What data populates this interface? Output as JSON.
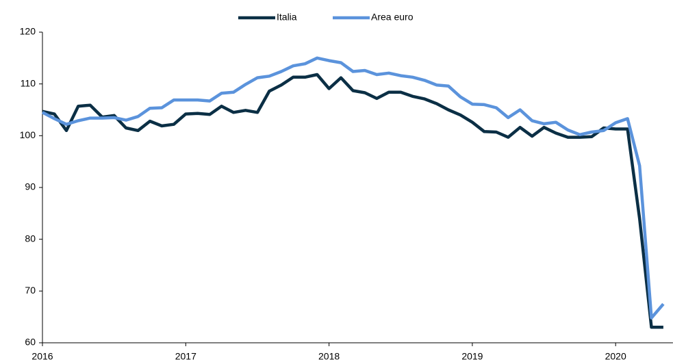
{
  "chart_data": {
    "type": "line",
    "x": [
      2016,
      2016.083,
      2016.167,
      2016.25,
      2016.333,
      2016.417,
      2016.5,
      2016.583,
      2016.667,
      2016.75,
      2016.833,
      2016.917,
      2017,
      2017.083,
      2017.167,
      2017.25,
      2017.333,
      2017.417,
      2017.5,
      2017.583,
      2017.667,
      2017.75,
      2017.833,
      2017.917,
      2018,
      2018.083,
      2018.167,
      2018.25,
      2018.333,
      2018.417,
      2018.5,
      2018.583,
      2018.667,
      2018.75,
      2018.833,
      2018.917,
      2019,
      2019.083,
      2019.167,
      2019.25,
      2019.333,
      2019.417,
      2019.5,
      2019.583,
      2019.667,
      2019.75,
      2019.833,
      2019.917,
      2020,
      2020.083,
      2020.167,
      2020.25,
      2020.333
    ],
    "series": [
      {
        "name": "Italia",
        "color": "#0b2f45",
        "values": [
          104.7,
          104.2,
          101.0,
          105.7,
          105.9,
          103.6,
          103.9,
          101.5,
          101.0,
          102.8,
          101.9,
          102.2,
          104.2,
          104.3,
          104.1,
          105.7,
          104.5,
          104.9,
          104.5,
          108.6,
          109.8,
          111.3,
          111.3,
          111.8,
          109.1,
          111.2,
          108.7,
          108.3,
          107.2,
          108.4,
          108.4,
          107.6,
          107.1,
          106.2,
          105.0,
          104.0,
          102.6,
          100.8,
          100.7,
          99.7,
          101.6,
          99.9,
          101.6,
          100.5,
          99.7,
          99.7,
          99.8,
          101.5,
          101.3,
          101.3,
          84.0,
          63.0,
          63.0
        ]
      },
      {
        "name": "Area euro",
        "color": "#5b93dc",
        "values": [
          104.5,
          103.3,
          102.2,
          102.9,
          103.4,
          103.4,
          103.5,
          103.0,
          103.7,
          105.3,
          105.4,
          106.9,
          106.9,
          106.9,
          106.7,
          108.2,
          108.4,
          109.9,
          111.2,
          111.5,
          112.4,
          113.5,
          113.9,
          115.0,
          114.5,
          114.1,
          112.4,
          112.6,
          111.8,
          112.1,
          111.6,
          111.3,
          110.7,
          109.8,
          109.6,
          107.5,
          106.1,
          106.0,
          105.4,
          103.5,
          105.0,
          102.9,
          102.3,
          102.6,
          101.1,
          100.2,
          100.7,
          101.0,
          102.5,
          103.3,
          94.2,
          64.8,
          67.5
        ]
      }
    ],
    "xlim": [
      2016,
      2020.4
    ],
    "xticks": [
      2016,
      2017,
      2018,
      2019,
      2020
    ],
    "ylim": [
      60,
      120
    ],
    "yticks": [
      60,
      70,
      80,
      90,
      100,
      110,
      120
    ],
    "grid": false,
    "legend": "top"
  }
}
